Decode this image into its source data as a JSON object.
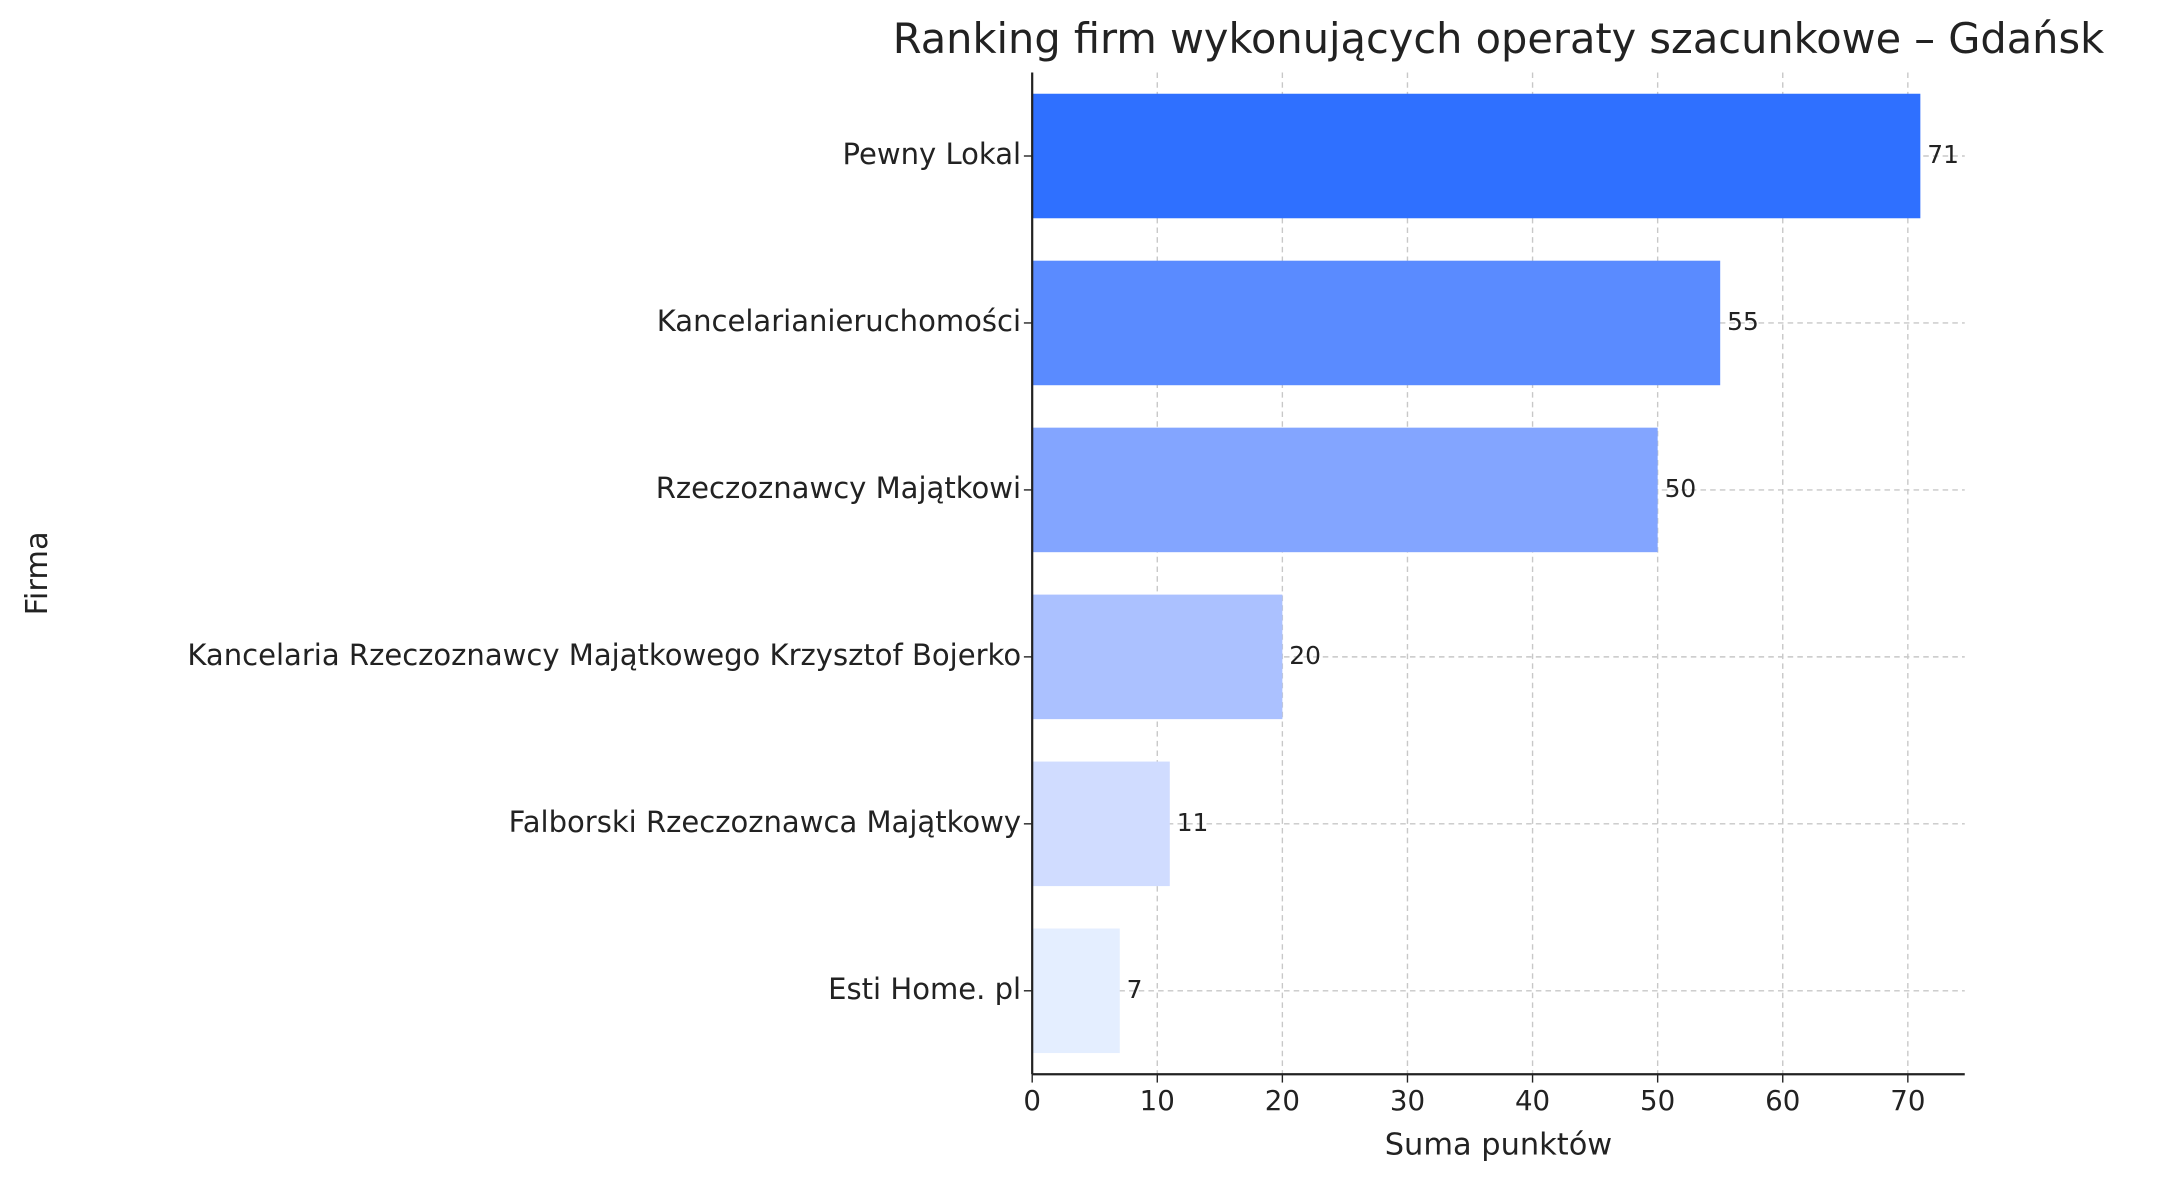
{
  "chart_data": {
    "type": "barh",
    "title": "Ranking firm wykonujących operaty szacunkowe – Gdańsk",
    "x_label": "Suma punktów",
    "y_label": "Firma",
    "categories": [
      "Pewny Lokal",
      "Kancelarianieruchomości",
      "Rzeczoznawcy Majątkowi",
      "Kancelaria Rzeczoznawcy Majątkowego Krzysztof Bojerko",
      "Falborski Rzeczoznawca Majątkowy",
      "Esti Home. pl"
    ],
    "values": [
      71,
      55,
      50,
      20,
      11,
      7
    ],
    "colors": [
      "#2f70ff",
      "#5a8bff",
      "#83a5ff",
      "#abc1ff",
      "#d0dcff",
      "#e4eeff"
    ],
    "xlim": [
      0,
      74.55
    ],
    "xticks": [
      0,
      10,
      20,
      30,
      40,
      50,
      60,
      70
    ],
    "grid": true
  }
}
